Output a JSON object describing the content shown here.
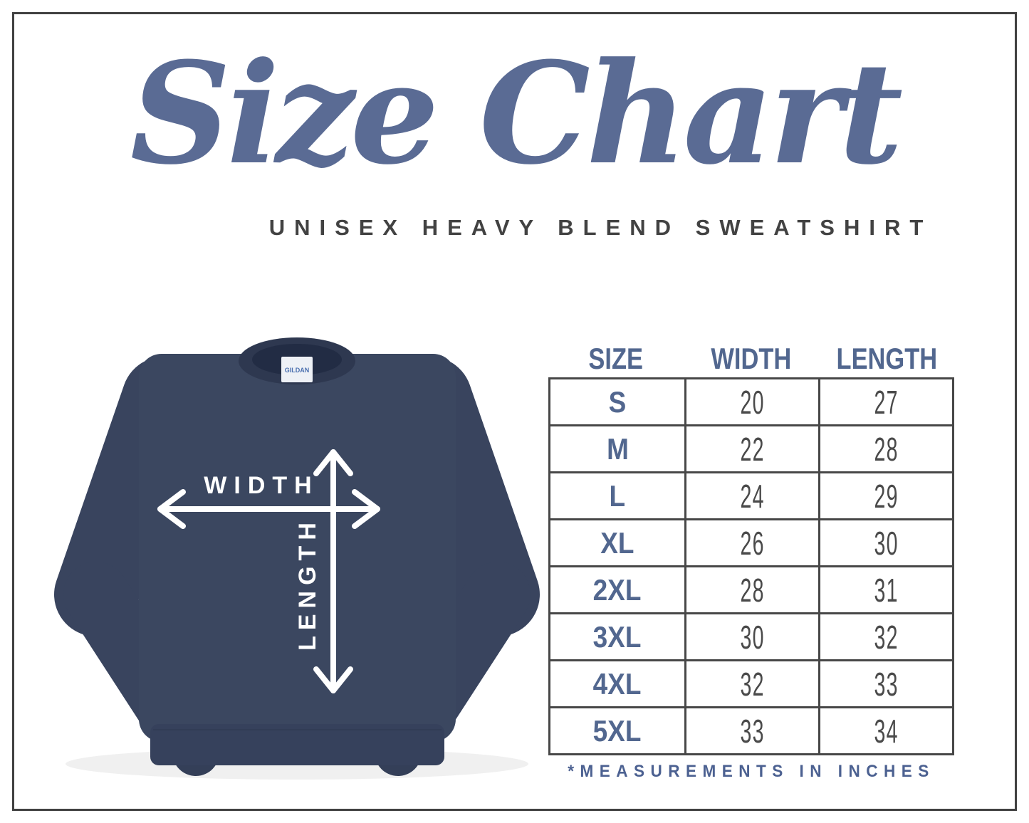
{
  "page": {
    "title_script": "Size Chart",
    "subtitle": "UNISEX HEAVY BLEND SWEATSHIRT",
    "footnote": "*MEASUREMENTS IN INCHES"
  },
  "shirt": {
    "brand_tag": "GILDAN",
    "width_label": "WIDTH",
    "length_label": "LENGTH"
  },
  "table": {
    "headers": [
      "SIZE",
      "WIDTH",
      "LENGTH"
    ],
    "rows": [
      {
        "size": "S",
        "width": "20",
        "length": "27"
      },
      {
        "size": "M",
        "width": "22",
        "length": "28"
      },
      {
        "size": "L",
        "width": "24",
        "length": "29"
      },
      {
        "size": "XL",
        "width": "26",
        "length": "30"
      },
      {
        "size": "2XL",
        "width": "28",
        "length": "31"
      },
      {
        "size": "3XL",
        "width": "30",
        "length": "32"
      },
      {
        "size": "4XL",
        "width": "32",
        "length": "33"
      },
      {
        "size": "5XL",
        "width": "33",
        "length": "34"
      }
    ]
  },
  "colors": {
    "title_blue": "#5a6b94",
    "header_blue": "#52678f",
    "footnote_blue": "#4c6191",
    "text_dark": "#4a4a4a",
    "border_dark": "#474747",
    "frame": "#414141",
    "sweatshirt_navy": "#3b4760"
  },
  "chart_data": {
    "type": "table",
    "title": "Size Chart",
    "subtitle": "UNISEX HEAVY BLEND SWEATSHIRT",
    "columns": [
      "SIZE",
      "WIDTH",
      "LENGTH"
    ],
    "rows": [
      [
        "S",
        20,
        27
      ],
      [
        "M",
        22,
        28
      ],
      [
        "L",
        24,
        29
      ],
      [
        "XL",
        26,
        30
      ],
      [
        "2XL",
        28,
        31
      ],
      [
        "3XL",
        30,
        32
      ],
      [
        "4XL",
        32,
        33
      ],
      [
        "5XL",
        33,
        34
      ]
    ],
    "units": "inches",
    "note": "*MEASUREMENTS IN INCHES"
  }
}
